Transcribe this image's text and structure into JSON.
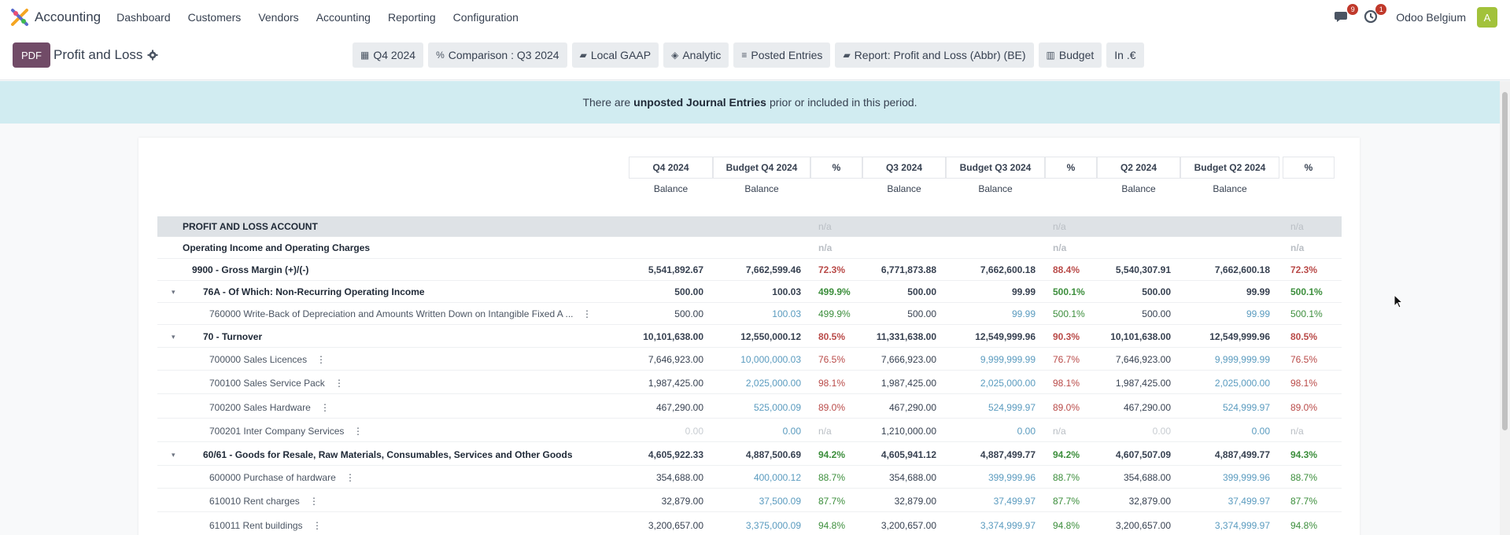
{
  "navbar": {
    "app_name": "Accounting",
    "menus": [
      "Dashboard",
      "Customers",
      "Vendors",
      "Accounting",
      "Reporting",
      "Configuration"
    ],
    "messages_count": "9",
    "activities_count": "1",
    "company": "Odoo Belgium",
    "avatar_letter": "A"
  },
  "control": {
    "pdf_label": "PDF",
    "title": "Profit and Loss",
    "filters": [
      {
        "icon": "calendar-icon",
        "glyph": "▦",
        "label": "Q4 2024"
      },
      {
        "icon": "percent-icon",
        "glyph": "%",
        "label": "Comparison : Q3 2024"
      },
      {
        "icon": "book-icon",
        "glyph": "▰",
        "label": "Local GAAP"
      },
      {
        "icon": "stack-icon",
        "glyph": "◈",
        "label": "Analytic"
      },
      {
        "icon": "sliders-icon",
        "glyph": "≡",
        "label": "Posted Entries"
      },
      {
        "icon": "book-icon",
        "glyph": "▰",
        "label": "Report: Profit and Loss (Abbr) (BE)"
      },
      {
        "icon": "bar-chart-icon",
        "glyph": "▥",
        "label": "Budget"
      },
      {
        "icon": "currency-icon",
        "glyph": "",
        "label": "In .€"
      }
    ]
  },
  "alert": {
    "before": "There are",
    "emphasis": "unposted Journal Entries",
    "after": "prior or included in this period."
  },
  "columns": {
    "headers": [
      "Q4 2024",
      "Budget Q4 2024",
      "%",
      "Q3 2024",
      "Budget Q3 2024",
      "%",
      "Q2 2024",
      "Budget Q2 2024",
      "%"
    ],
    "sub_headers": [
      "Balance",
      "Balance",
      "",
      "Balance",
      "Balance",
      "",
      "Balance",
      "Balance",
      ""
    ]
  },
  "rows": [
    {
      "kind": "section",
      "label": "PROFIT AND LOSS ACCOUNT",
      "values": [
        "",
        "",
        "n/a",
        "",
        "",
        "n/a",
        "",
        "",
        "n/a"
      ]
    },
    {
      "kind": "group",
      "label": "Operating Income and Operating Charges",
      "values": [
        "",
        "",
        "n/a",
        "",
        "",
        "n/a",
        "",
        "",
        "n/a"
      ]
    },
    {
      "kind": "bold",
      "label": "9900 - Gross Margin (+)/(-)",
      "values": [
        "5,541,892.67",
        "7,662,599.46",
        "72.3%",
        "6,771,873.88",
        "7,662,600.18",
        "88.4%",
        "5,540,307.91",
        "7,662,600.18",
        "72.3%"
      ],
      "pct_colors": [
        "red",
        "red",
        "red"
      ]
    },
    {
      "kind": "bold",
      "caret": true,
      "label": "76A - Of Which: Non-Recurring Operating Income",
      "values": [
        "500.00",
        "100.03",
        "499.9%",
        "500.00",
        "99.99",
        "500.1%",
        "500.00",
        "99.99",
        "500.1%"
      ],
      "pct_colors": [
        "green",
        "green",
        "green"
      ]
    },
    {
      "kind": "line",
      "label": "760000 Write-Back of Depreciation and Amounts Written Down on Intangible Fixed A ...",
      "values": [
        "500.00",
        "100.03",
        "499.9%",
        "500.00",
        "99.99",
        "500.1%",
        "500.00",
        "99.99",
        "500.1%"
      ],
      "pct_colors": [
        "green",
        "green",
        "green"
      ]
    },
    {
      "kind": "bold",
      "caret": true,
      "label": "70 - Turnover",
      "values": [
        "10,101,638.00",
        "12,550,000.12",
        "80.5%",
        "11,331,638.00",
        "12,549,999.96",
        "90.3%",
        "10,101,638.00",
        "12,549,999.96",
        "80.5%"
      ],
      "pct_colors": [
        "red",
        "red",
        "red"
      ]
    },
    {
      "kind": "line",
      "label": "700000 Sales Licences",
      "values": [
        "7,646,923.00",
        "10,000,000.03",
        "76.5%",
        "7,666,923.00",
        "9,999,999.99",
        "76.7%",
        "7,646,923.00",
        "9,999,999.99",
        "76.5%"
      ],
      "pct_colors": [
        "red",
        "red",
        "red"
      ]
    },
    {
      "kind": "line",
      "label": "700100 Sales Service Pack",
      "values": [
        "1,987,425.00",
        "2,025,000.00",
        "98.1%",
        "1,987,425.00",
        "2,025,000.00",
        "98.1%",
        "1,987,425.00",
        "2,025,000.00",
        "98.1%"
      ],
      "pct_colors": [
        "red",
        "red",
        "red"
      ]
    },
    {
      "kind": "line",
      "label": "700200 Sales Hardware",
      "values": [
        "467,290.00",
        "525,000.09",
        "89.0%",
        "467,290.00",
        "524,999.97",
        "89.0%",
        "467,290.00",
        "524,999.97",
        "89.0%"
      ],
      "pct_colors": [
        "red",
        "red",
        "red"
      ]
    },
    {
      "kind": "line",
      "label": "700201 Inter Company Services",
      "values": [
        "0.00",
        "0.00",
        "n/a",
        "1,210,000.00",
        "0.00",
        "n/a",
        "0.00",
        "0.00",
        "n/a"
      ],
      "pct_colors": [
        "na",
        "na",
        "na"
      ],
      "zero_cols": [
        0,
        6
      ]
    },
    {
      "kind": "bold",
      "caret": true,
      "label": "60/61 - Goods for Resale, Raw Materials, Consumables, Services and Other Goods",
      "values": [
        "4,605,922.33",
        "4,887,500.69",
        "94.2%",
        "4,605,941.12",
        "4,887,499.77",
        "94.2%",
        "4,607,507.09",
        "4,887,499.77",
        "94.3%"
      ],
      "pct_colors": [
        "green",
        "green",
        "green"
      ]
    },
    {
      "kind": "line",
      "label": "600000 Purchase of hardware",
      "values": [
        "354,688.00",
        "400,000.12",
        "88.7%",
        "354,688.00",
        "399,999.96",
        "88.7%",
        "354,688.00",
        "399,999.96",
        "88.7%"
      ],
      "pct_colors": [
        "green",
        "green",
        "green"
      ]
    },
    {
      "kind": "line",
      "label": "610010 Rent charges",
      "values": [
        "32,879.00",
        "37,500.09",
        "87.7%",
        "32,879.00",
        "37,499.97",
        "87.7%",
        "32,879.00",
        "37,499.97",
        "87.7%"
      ],
      "pct_colors": [
        "green",
        "green",
        "green"
      ]
    },
    {
      "kind": "line",
      "label": "610011 Rent buildings",
      "values": [
        "3,200,657.00",
        "3,375,000.09",
        "94.8%",
        "3,200,657.00",
        "3,374,999.97",
        "94.8%",
        "3,200,657.00",
        "3,374,999.97",
        "94.8%"
      ],
      "pct_colors": [
        "green",
        "green",
        "green"
      ]
    }
  ]
}
